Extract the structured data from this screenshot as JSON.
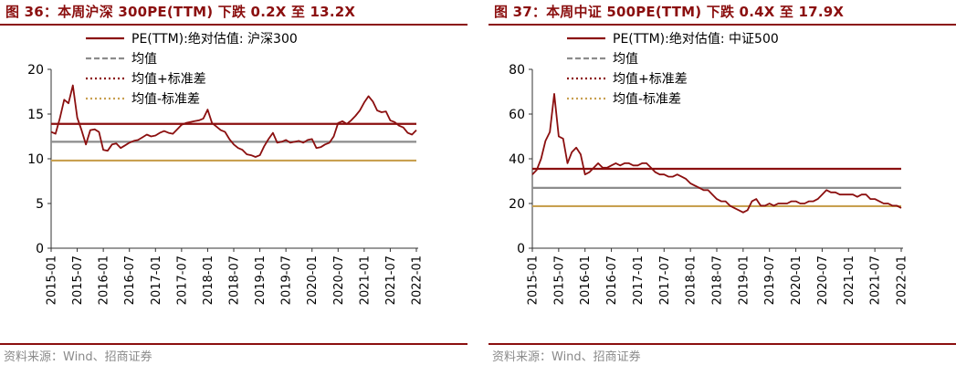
{
  "charts": [
    {
      "title": "图 36：本周沪深 300PE(TTM) 下跌 0.2X 至 13.2X",
      "source": "资料来源：Wind、招商证券",
      "chart_data": {
        "type": "line",
        "title": "图 36：本周沪深 300PE(TTM) 下跌 0.2X 至 13.2X",
        "xlabel": "",
        "ylabel": "",
        "ylim": [
          0,
          20
        ],
        "yticks": [
          "0",
          "5",
          "10",
          "15",
          "20"
        ],
        "xticks": [
          "2015-01",
          "2015-07",
          "2016-01",
          "2016-07",
          "2017-01",
          "2017-07",
          "2018-01",
          "2018-07",
          "2019-01",
          "2019-07",
          "2020-01",
          "2020-07",
          "2021-01",
          "2021-07",
          "2022-01"
        ],
        "legend_position": "top",
        "grid": false,
        "series": [
          {
            "name": "PE(TTM):绝对估值: 沪深300",
            "style": "solid",
            "color": "#8b0f0f",
            "x": [
              "2015-01",
              "2015-02",
              "2015-03",
              "2015-04",
              "2015-05",
              "2015-06",
              "2015-07",
              "2015-08",
              "2015-09",
              "2015-10",
              "2015-11",
              "2015-12",
              "2016-01",
              "2016-02",
              "2016-03",
              "2016-04",
              "2016-05",
              "2016-06",
              "2016-07",
              "2016-08",
              "2016-09",
              "2016-10",
              "2016-11",
              "2016-12",
              "2017-01",
              "2017-02",
              "2017-03",
              "2017-04",
              "2017-05",
              "2017-06",
              "2017-07",
              "2017-08",
              "2017-09",
              "2017-10",
              "2017-11",
              "2017-12",
              "2018-01",
              "2018-02",
              "2018-03",
              "2018-04",
              "2018-05",
              "2018-06",
              "2018-07",
              "2018-08",
              "2018-09",
              "2018-10",
              "2018-11",
              "2018-12",
              "2019-01",
              "2019-02",
              "2019-03",
              "2019-04",
              "2019-05",
              "2019-06",
              "2019-07",
              "2019-08",
              "2019-09",
              "2019-10",
              "2019-11",
              "2019-12",
              "2020-01",
              "2020-02",
              "2020-03",
              "2020-04",
              "2020-05",
              "2020-06",
              "2020-07",
              "2020-08",
              "2020-09",
              "2020-10",
              "2020-11",
              "2020-12",
              "2021-01",
              "2021-02",
              "2021-03",
              "2021-04",
              "2021-05",
              "2021-06",
              "2021-07",
              "2021-08",
              "2021-09",
              "2021-10",
              "2021-11",
              "2021-12",
              "2022-01"
            ],
            "values": [
              13.0,
              12.8,
              14.5,
              16.6,
              16.2,
              18.2,
              14.6,
              13.2,
              11.6,
              13.2,
              13.3,
              13.0,
              11.0,
              10.9,
              11.6,
              11.7,
              11.2,
              11.5,
              11.8,
              12.0,
              12.1,
              12.4,
              12.7,
              12.5,
              12.6,
              12.9,
              13.1,
              12.9,
              12.8,
              13.3,
              13.8,
              14.0,
              14.1,
              14.2,
              14.3,
              14.5,
              15.5,
              14.0,
              13.6,
              13.2,
              13.0,
              12.2,
              11.6,
              11.2,
              11.0,
              10.5,
              10.4,
              10.2,
              10.4,
              11.4,
              12.2,
              12.9,
              11.8,
              11.9,
              12.1,
              11.8,
              11.9,
              12.0,
              11.8,
              12.1,
              12.2,
              11.2,
              11.3,
              11.6,
              11.8,
              12.5,
              14.0,
              14.2,
              13.9,
              14.3,
              14.8,
              15.4,
              16.3,
              17.0,
              16.4,
              15.4,
              15.2,
              15.3,
              14.3,
              14.1,
              13.7,
              13.5,
              12.9,
              12.7,
              13.2
            ]
          },
          {
            "name": "均值",
            "style": "solid",
            "color": "#8c8c8c",
            "values": [
              11.9
            ]
          },
          {
            "name": "均值+标准差",
            "style": "solid",
            "color": "#8b0f0f",
            "values": [
              13.9
            ]
          },
          {
            "name": "均值-标准差",
            "style": "solid",
            "color": "#c8a050",
            "values": [
              9.8
            ]
          }
        ]
      }
    },
    {
      "title": "图 37：本周中证 500PE(TTM) 下跌 0.4X 至 17.9X",
      "source": "资料来源：Wind、招商证券",
      "chart_data": {
        "type": "line",
        "title": "图 37：本周中证 500PE(TTM) 下跌 0.4X 至 17.9X",
        "xlabel": "",
        "ylabel": "",
        "ylim": [
          0,
          80
        ],
        "yticks": [
          "0",
          "20",
          "40",
          "60",
          "80"
        ],
        "xticks": [
          "2015-01",
          "2015-07",
          "2016-01",
          "2016-07",
          "2017-01",
          "2017-07",
          "2018-01",
          "2018-07",
          "2019-01",
          "2019-07",
          "2020-01",
          "2020-07",
          "2021-01",
          "2021-07",
          "2022-01"
        ],
        "legend_position": "top",
        "grid": false,
        "series": [
          {
            "name": "PE(TTM):绝对估值: 中证500",
            "style": "solid",
            "color": "#8b0f0f",
            "x": [
              "2015-01",
              "2015-02",
              "2015-03",
              "2015-04",
              "2015-05",
              "2015-06",
              "2015-07",
              "2015-08",
              "2015-09",
              "2015-10",
              "2015-11",
              "2015-12",
              "2016-01",
              "2016-02",
              "2016-03",
              "2016-04",
              "2016-05",
              "2016-06",
              "2016-07",
              "2016-08",
              "2016-09",
              "2016-10",
              "2016-11",
              "2016-12",
              "2017-01",
              "2017-02",
              "2017-03",
              "2017-04",
              "2017-05",
              "2017-06",
              "2017-07",
              "2017-08",
              "2017-09",
              "2017-10",
              "2017-11",
              "2017-12",
              "2018-01",
              "2018-02",
              "2018-03",
              "2018-04",
              "2018-05",
              "2018-06",
              "2018-07",
              "2018-08",
              "2018-09",
              "2018-10",
              "2018-11",
              "2018-12",
              "2019-01",
              "2019-02",
              "2019-03",
              "2019-04",
              "2019-05",
              "2019-06",
              "2019-07",
              "2019-08",
              "2019-09",
              "2019-10",
              "2019-11",
              "2019-12",
              "2020-01",
              "2020-02",
              "2020-03",
              "2020-04",
              "2020-05",
              "2020-06",
              "2020-07",
              "2020-08",
              "2020-09",
              "2020-10",
              "2020-11",
              "2020-12",
              "2021-01",
              "2021-02",
              "2021-03",
              "2021-04",
              "2021-05",
              "2021-06",
              "2021-07",
              "2021-08",
              "2021-09",
              "2021-10",
              "2021-11",
              "2021-12",
              "2022-01"
            ],
            "values": [
              33,
              35,
              40,
              48,
              52,
              69,
              50,
              49,
              38,
              43,
              45,
              42,
              33,
              34,
              36,
              38,
              36,
              36,
              37,
              38,
              37,
              38,
              38,
              37,
              37,
              38,
              38,
              36,
              34,
              33,
              33,
              32,
              32,
              33,
              32,
              31,
              29,
              28,
              27,
              26,
              26,
              24,
              22,
              21,
              21,
              19,
              18,
              17,
              16,
              17,
              21,
              22,
              19,
              19,
              20,
              19,
              20,
              20,
              20,
              21,
              21,
              20,
              20,
              21,
              21,
              22,
              24,
              26,
              25,
              25,
              24,
              24,
              24,
              24,
              23,
              24,
              24,
              22,
              22,
              21,
              20,
              20,
              19,
              19,
              18
            ]
          },
          {
            "name": "均值",
            "style": "solid",
            "color": "#8c8c8c",
            "values": [
              27.0
            ]
          },
          {
            "name": "均值+标准差",
            "style": "solid",
            "color": "#8b0f0f",
            "values": [
              35.5
            ]
          },
          {
            "name": "均值-标准差",
            "style": "solid",
            "color": "#c8a050",
            "values": [
              18.8
            ]
          }
        ]
      }
    }
  ]
}
